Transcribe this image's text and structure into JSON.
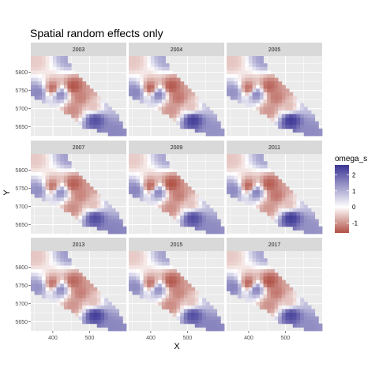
{
  "chart_data": {
    "type": "heatmap",
    "title": "Spatial random effects only",
    "xlabel": "X",
    "ylabel": "Y",
    "panels": [
      "2003",
      "2004",
      "2005",
      "2007",
      "2009",
      "2011",
      "2013",
      "2015",
      "2017"
    ],
    "xlim": [
      340,
      600
    ],
    "ylim": [
      5625,
      5845
    ],
    "x_ticks": [
      400,
      500
    ],
    "y_ticks": [
      5650,
      5700,
      5750,
      5800
    ],
    "grid": true,
    "legend": {
      "title": "omega_s",
      "position": "right",
      "range": [
        -1.6,
        2.6
      ],
      "ticks": [
        2,
        1,
        0,
        -1
      ],
      "tick_labels": [
        "2",
        "1",
        "0",
        "-1"
      ],
      "colors": {
        "low": "#b05045",
        "mid": "#ffffff",
        "high": "#3a3494"
      }
    },
    "region_hull": [
      [
        340,
        5845
      ],
      [
        440,
        5845
      ],
      [
        448,
        5810
      ],
      [
        470,
        5790
      ],
      [
        505,
        5760
      ],
      [
        535,
        5730
      ],
      [
        555,
        5705
      ],
      [
        575,
        5685
      ],
      [
        600,
        5640
      ],
      [
        600,
        5625
      ],
      [
        565,
        5625
      ],
      [
        545,
        5635
      ],
      [
        520,
        5640
      ],
      [
        480,
        5650
      ],
      [
        460,
        5672
      ],
      [
        440,
        5685
      ],
      [
        405,
        5705
      ],
      [
        375,
        5720
      ],
      [
        345,
        5735
      ],
      [
        340,
        5750
      ]
    ],
    "hotspots": [
      {
        "x": 400,
        "y": 5755,
        "value": -1.4
      },
      {
        "x": 455,
        "y": 5760,
        "value": -1.5
      },
      {
        "x": 455,
        "y": 5695,
        "value": -1.0
      },
      {
        "x": 520,
        "y": 5755,
        "value": -0.9
      },
      {
        "x": 510,
        "y": 5705,
        "value": -0.6
      },
      {
        "x": 515,
        "y": 5670,
        "value": 2.4
      },
      {
        "x": 420,
        "y": 5740,
        "value": 1.6
      },
      {
        "x": 360,
        "y": 5745,
        "value": 1.5
      },
      {
        "x": 560,
        "y": 5725,
        "value": 1.0
      },
      {
        "x": 565,
        "y": 5635,
        "value": 1.5
      },
      {
        "x": 445,
        "y": 5835,
        "value": 1.2
      },
      {
        "x": 350,
        "y": 5830,
        "value": -0.5
      },
      {
        "x": 475,
        "y": 5730,
        "value": -1.2
      }
    ]
  }
}
